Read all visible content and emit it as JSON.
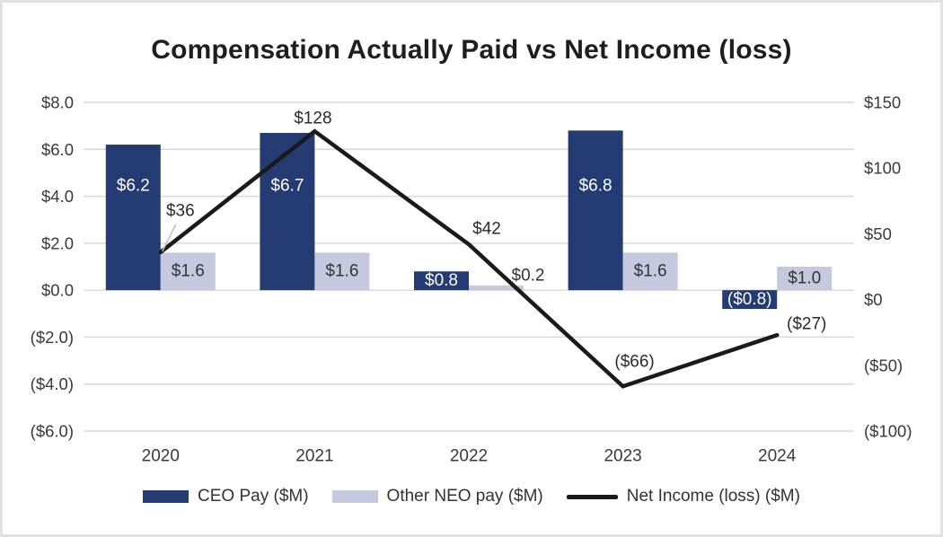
{
  "title": "Compensation Actually Paid vs Net Income (loss)",
  "colors": {
    "ceo_bar": "#243b73",
    "neo_bar": "#c6c8df",
    "net_income_line": "#1a1a1a",
    "gridline": "#d9d9d9",
    "axis_text": "#3a3a3a",
    "bar_label_on_dark": "#ffffff",
    "bar_label_on_light": "#333333",
    "line_label": "#2b2b2b",
    "leader_line": "#bfbfbf",
    "frame_border": "#e2e2e2"
  },
  "chart_data": {
    "type": "combo",
    "title": "Compensation Actually Paid vs Net Income (loss)",
    "categories": [
      "2020",
      "2021",
      "2022",
      "2023",
      "2024"
    ],
    "series": [
      {
        "name": "CEO Pay ($M)",
        "type": "bar",
        "axis": "left",
        "values": [
          6.2,
          6.7,
          0.8,
          6.8,
          -0.8
        ],
        "labels": [
          "$6.2",
          "$6.7",
          "$0.8",
          "$6.8",
          "($0.8)"
        ]
      },
      {
        "name": "Other NEO pay ($M)",
        "type": "bar",
        "axis": "left",
        "values": [
          1.6,
          1.6,
          0.2,
          1.6,
          1.0
        ],
        "labels": [
          "$1.6",
          "$1.6",
          "$0.2",
          "$1.6",
          "$1.0"
        ]
      },
      {
        "name": "Net Income (loss) ($M)",
        "type": "line",
        "axis": "right",
        "values": [
          36,
          128,
          42,
          -66,
          -27
        ],
        "labels": [
          "$36",
          "$128",
          "$42",
          "($66)",
          "($27)"
        ]
      }
    ],
    "left_axis": {
      "min": -6,
      "max": 8,
      "ticks": [
        {
          "value": 8,
          "label": "$8.0"
        },
        {
          "value": 6,
          "label": "$6.0"
        },
        {
          "value": 4,
          "label": "$4.0"
        },
        {
          "value": 2,
          "label": "$2.0"
        },
        {
          "value": 0,
          "label": "$0.0"
        },
        {
          "value": -2,
          "label": "($2.0)"
        },
        {
          "value": -4,
          "label": "($4.0)"
        },
        {
          "value": -6,
          "label": "($6.0)"
        }
      ]
    },
    "right_axis": {
      "min": -100,
      "max": 150,
      "ticks": [
        {
          "value": 150,
          "label": "$150"
        },
        {
          "value": 100,
          "label": "$100"
        },
        {
          "value": 50,
          "label": "$50"
        },
        {
          "value": 0,
          "label": "$0"
        },
        {
          "value": -50,
          "label": "($50)"
        },
        {
          "value": -100,
          "label": "($100)"
        }
      ]
    },
    "grid": true,
    "legend_position": "bottom"
  }
}
